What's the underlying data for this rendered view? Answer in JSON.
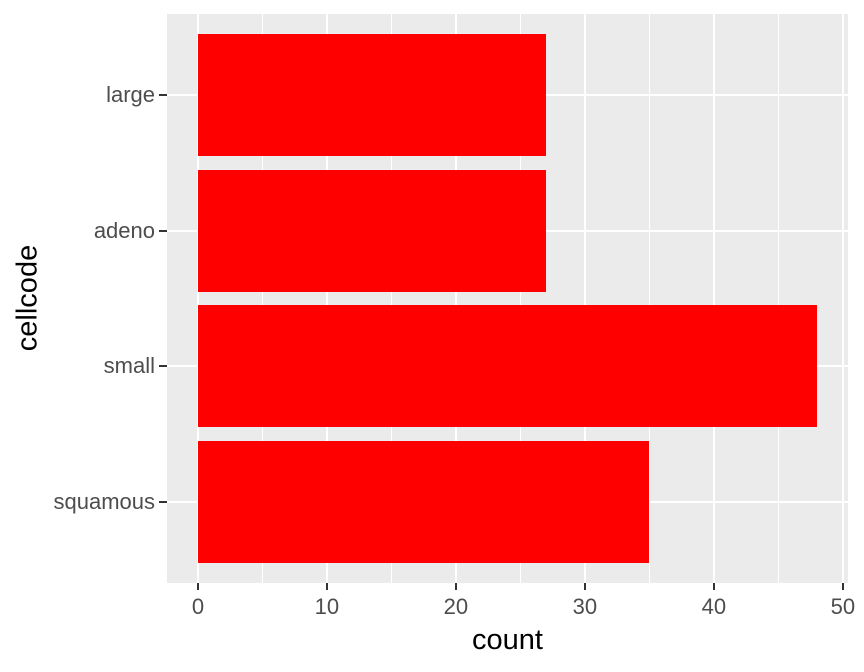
{
  "chart_data": {
    "type": "bar",
    "orientation": "horizontal",
    "xlabel": "count",
    "ylabel": "cellcode",
    "categories": [
      "large",
      "adeno",
      "small",
      "squamous"
    ],
    "values": [
      27,
      27,
      48,
      35
    ],
    "series": [
      {
        "name": "count",
        "values": [
          27,
          27,
          48,
          35
        ]
      }
    ],
    "xlim": [
      -2.4,
      50.4
    ],
    "x_major_ticks": [
      0,
      10,
      20,
      30,
      40,
      50
    ],
    "x_minor_ticks": [
      5,
      15,
      25,
      35,
      45
    ],
    "bar_width_fraction": 0.9,
    "grid": "on",
    "legend_position": "none",
    "colors": {
      "bar_fill": "#FF0000",
      "panel_background": "#EBEBEB",
      "gridline": "#FFFFFF",
      "tick_text": "#4D4D4D",
      "tick_mark": "#333333",
      "axis_title_text": "#000000",
      "figure_background": "#FFFFFF"
    }
  }
}
